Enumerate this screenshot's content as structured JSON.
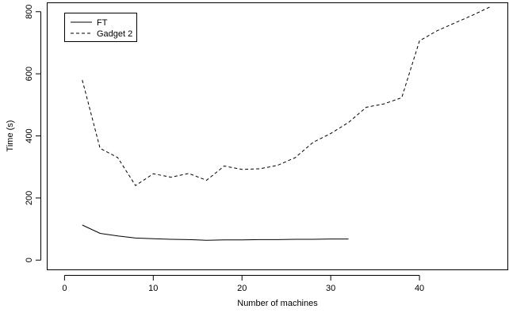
{
  "chart_data": {
    "type": "line",
    "xlabel": "Number of machines",
    "ylabel": "Time (s)",
    "xlim": [
      -2,
      50
    ],
    "ylim": [
      -30,
      830
    ],
    "xticks": [
      0,
      10,
      20,
      30,
      40
    ],
    "yticks": [
      0,
      200,
      400,
      600,
      800
    ],
    "grid": false,
    "legend_position": "top-left",
    "series": [
      {
        "name": "FT",
        "style": "solid",
        "color": "#000000",
        "x": [
          2,
          4,
          6,
          8,
          10,
          12,
          14,
          16,
          18,
          20,
          22,
          24,
          26,
          28,
          30,
          32
        ],
        "y": [
          113,
          86,
          78,
          71,
          69,
          67,
          66,
          64,
          65,
          65,
          66,
          66,
          67,
          67,
          68,
          68
        ]
      },
      {
        "name": "Gadget 2",
        "style": "dashed",
        "color": "#000000",
        "x": [
          2,
          4,
          6,
          8,
          10,
          12,
          14,
          16,
          18,
          20,
          22,
          24,
          26,
          28,
          30,
          32,
          34,
          36,
          38,
          40,
          42,
          44,
          46,
          48
        ],
        "y": [
          580,
          360,
          330,
          240,
          278,
          267,
          279,
          257,
          303,
          292,
          294,
          305,
          330,
          379,
          408,
          443,
          492,
          503,
          523,
          706,
          739,
          764,
          789,
          816
        ]
      }
    ]
  }
}
